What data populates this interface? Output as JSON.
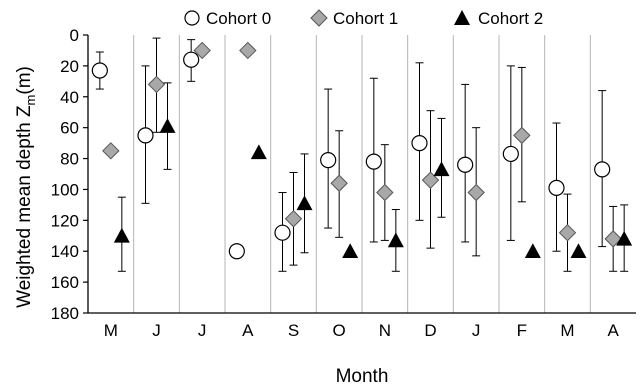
{
  "chart_data": {
    "type": "scatter",
    "title": "",
    "xlabel": "Month",
    "ylabel_main": "Weighted mean depth Z",
    "ylabel_sub": "m",
    "ylabel_unit": "(m)",
    "categories": [
      "M",
      "J",
      "J",
      "A",
      "S",
      "O",
      "N",
      "D",
      "J",
      "F",
      "M",
      "A"
    ],
    "yticks": [
      0,
      20,
      40,
      60,
      80,
      100,
      120,
      140,
      160,
      180
    ],
    "ylim": [
      0,
      180
    ],
    "y_inverted": true,
    "grid": "vertical separators between months",
    "legend_position": "top",
    "series": [
      {
        "name": "Cohort 0",
        "marker": "circle",
        "fill": "#ffffff",
        "values": [
          23,
          65,
          16,
          140,
          128,
          81,
          82,
          70,
          84,
          77,
          99,
          87
        ],
        "err_low": [
          11,
          20,
          3,
          null,
          102,
          35,
          28,
          18,
          32,
          20,
          57,
          36
        ],
        "err_high": [
          35,
          109,
          30,
          null,
          153,
          125,
          134,
          120,
          134,
          133,
          140,
          137
        ]
      },
      {
        "name": "Cohort 1",
        "marker": "diamond",
        "fill": "#a8a8a8",
        "values": [
          75,
          32,
          10,
          10,
          119,
          96,
          102,
          94,
          102,
          65,
          128,
          132
        ],
        "err_low": [
          null,
          2,
          null,
          null,
          89,
          62,
          71,
          49,
          60,
          21,
          103,
          111
        ],
        "err_high": [
          null,
          63,
          null,
          null,
          149,
          131,
          133,
          138,
          143,
          108,
          153,
          153
        ]
      },
      {
        "name": "Cohort 2",
        "marker": "triangle",
        "fill": "#000000",
        "values": [
          130,
          59,
          null,
          76,
          109,
          140,
          133,
          87,
          null,
          140,
          140,
          132
        ],
        "err_low": [
          105,
          31,
          null,
          null,
          77,
          null,
          113,
          54,
          null,
          null,
          null,
          110
        ],
        "err_high": [
          153,
          87,
          null,
          null,
          141,
          null,
          153,
          118,
          null,
          null,
          null,
          153
        ]
      }
    ]
  }
}
